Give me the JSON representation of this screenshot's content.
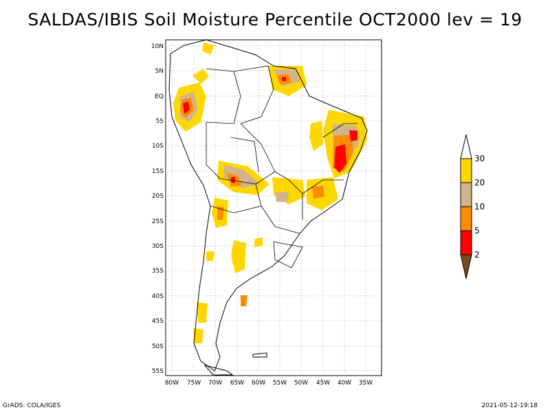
{
  "title": "SALDAS/IBIS Soil Moisture Percentile OCT2000 lev = 19",
  "footer": {
    "left": "GrADS: COLA/IGES",
    "right": "2021-05-12-19:18"
  },
  "axes": {
    "lat_labels": [
      "10N",
      "5N",
      "EQ",
      "5S",
      "10S",
      "15S",
      "20S",
      "25S",
      "30S",
      "35S",
      "40S",
      "45S",
      "50S",
      "55S"
    ],
    "lon_labels": [
      "80W",
      "75W",
      "70W",
      "65W",
      "60W",
      "55W",
      "50W",
      "45W",
      "40W",
      "35W"
    ]
  },
  "colorbar": {
    "labels": [
      "2",
      "5",
      "10",
      "20",
      "30"
    ],
    "colors": [
      "#7a4a1e",
      "#ff0000",
      "#ff8c00",
      "#d2b48c",
      "#ffd700",
      "#ffffff"
    ]
  },
  "palette": {
    "land_outline": "#000000",
    "grid": "#a0a0a0"
  }
}
